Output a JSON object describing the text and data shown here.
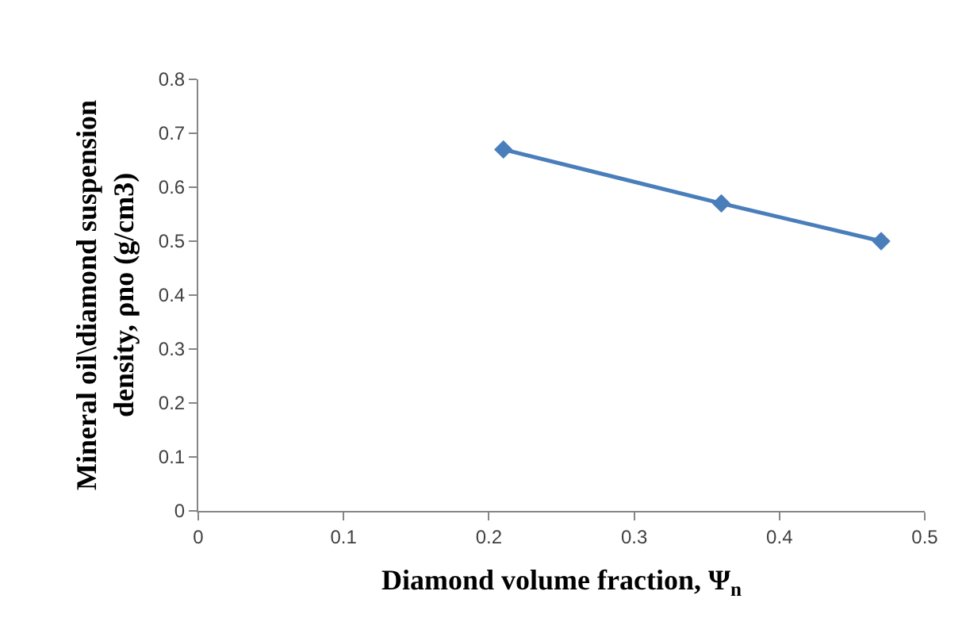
{
  "chart_data": {
    "type": "line",
    "xlabel": "Diamond volume fraction, Ψ$_{n}$",
    "ylabel": "Mineral oil\\diamond suspension density, ρno (g/cm3)",
    "x": [
      0.21,
      0.36,
      0.47
    ],
    "series": [
      {
        "color": "#4a7ebb",
        "values": [
          0.67,
          0.57,
          0.5
        ]
      }
    ],
    "xlim": [
      0,
      0.5
    ],
    "xticks": [
      0,
      0.1,
      0.2,
      0.3,
      0.4,
      0.5
    ],
    "ylim": [
      0,
      0.8
    ],
    "yticks": [
      0,
      0.1,
      0.2,
      0.3,
      0.4,
      0.5,
      0.6,
      0.7,
      0.8
    ],
    "grid": false,
    "marker": "diamond",
    "line_style": "solid"
  }
}
